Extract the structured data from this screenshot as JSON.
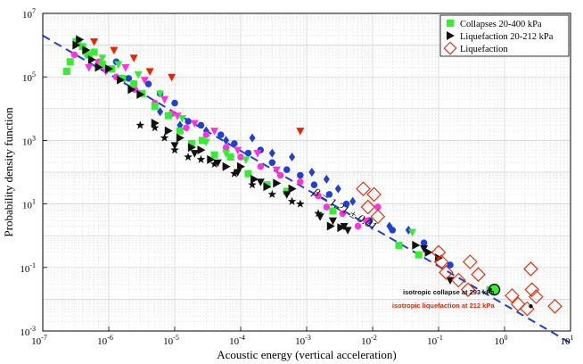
{
  "chart_data": {
    "type": "scatter",
    "title": "",
    "xlabel": "Acoustic energy (vertical acceleration)",
    "ylabel": "Probability density function",
    "x_scale": "log",
    "y_scale": "log",
    "xlim": [
      1e-07,
      10
    ],
    "ylim": [
      0.001,
      10000000
    ],
    "grid": true,
    "legend_placement": "top-right",
    "x_ticks": [
      {
        "value": 1e-07,
        "base": "10",
        "exp": "-7"
      },
      {
        "value": 1e-06,
        "base": "10",
        "exp": "-6"
      },
      {
        "value": 1e-05,
        "base": "10",
        "exp": "-5"
      },
      {
        "value": 0.0001,
        "base": "10",
        "exp": "-4"
      },
      {
        "value": 0.001,
        "base": "10",
        "exp": "-3"
      },
      {
        "value": 0.01,
        "base": "10",
        "exp": "-2"
      },
      {
        "value": 0.1,
        "base": "10",
        "exp": "-1"
      },
      {
        "value": 1,
        "base": "10",
        "exp": "0"
      },
      {
        "value": 10,
        "base": "10",
        "exp": "1"
      }
    ],
    "y_ticks": [
      {
        "value": 0.001,
        "base": "10",
        "exp": "-3"
      },
      {
        "value": 0.1,
        "base": "10",
        "exp": "-1"
      },
      {
        "value": 10,
        "base": "10",
        "exp": "1"
      },
      {
        "value": 1000,
        "base": "10",
        "exp": "3"
      },
      {
        "value": 100000,
        "base": "10",
        "exp": "5"
      },
      {
        "value": 10000000,
        "base": "10",
        "exp": "7"
      }
    ],
    "fit_line": {
      "exponent": 1.21,
      "x_start": 1e-07,
      "x_end": 10,
      "y_start": 2000000,
      "color": "#1f3fd6"
    },
    "fit_label": {
      "beta": "β",
      "text": " = 1.21 ± 0.01",
      "anchor": [
        0.0012,
        20
      ]
    },
    "legend": [
      {
        "label": "Collapses 20-400 kPa",
        "marker": "square",
        "color": "#33ee33"
      },
      {
        "label": "Liquefaction 20-212 kPa",
        "marker": "triangle-right",
        "color": "#111111"
      },
      {
        "label": "Liquefaction",
        "marker": "diamond-open",
        "color": "#ee2200"
      }
    ],
    "annotations": [
      {
        "text": "isotropic collapse at 293 kPa",
        "color": "#111111",
        "at": [
          0.7,
          0.014
        ]
      },
      {
        "text": "isotropic liquefaction at 212 kPa",
        "color": "#ee2200",
        "at": [
          0.7,
          0.0054
        ]
      }
    ],
    "series": [
      {
        "name": "Collapses 20-400 kPa",
        "marker": "square",
        "color": "#33ee33",
        "points": [
          [
            2.3e-07,
            150000
          ],
          [
            2.6e-07,
            300000
          ],
          [
            3.2e-07,
            1300000
          ],
          [
            4e-07,
            900000
          ],
          [
            5e-07,
            500000
          ],
          [
            6e-07,
            600000
          ],
          [
            8e-07,
            250000
          ],
          [
            1.1e-06,
            180000
          ],
          [
            1.6e-06,
            90000
          ],
          [
            2.4e-06,
            60000
          ],
          [
            3.2e-06,
            30000
          ],
          [
            5e-06,
            12000
          ],
          [
            8e-06,
            6000
          ],
          [
            1.2e-05,
            2000
          ],
          [
            1.8e-05,
            800
          ],
          [
            2.6e-05,
            1000
          ],
          [
            4e-05,
            350
          ],
          [
            7e-05,
            300
          ],
          [
            0.00013,
            90
          ],
          [
            0.00025,
            40
          ],
          [
            0.0005,
            25
          ],
          [
            0.0025,
            6
          ],
          [
            0.025,
            0.5
          ],
          [
            0.05,
            0.25
          ],
          [
            0.6,
            0.02
          ]
        ]
      },
      {
        "name": "Liquefaction 20-212 kPa",
        "marker": "triangle-right",
        "color": "#111111",
        "points": [
          [
            3.2e-07,
            1000000
          ],
          [
            3.6e-07,
            1500000
          ],
          [
            4.5e-07,
            700000
          ],
          [
            5.5e-07,
            350000
          ],
          [
            7e-07,
            200000
          ],
          [
            1e-06,
            180000
          ],
          [
            1.5e-06,
            80000
          ],
          [
            2.2e-06,
            40000
          ],
          [
            3e-06,
            28000
          ],
          [
            5e-06,
            3500
          ],
          [
            8e-06,
            2000
          ],
          [
            1.2e-05,
            1200
          ],
          [
            1.8e-05,
            600
          ],
          [
            2.5e-05,
            500
          ],
          [
            3.5e-05,
            250
          ],
          [
            6e-05,
            150
          ],
          [
            0.0001,
            150
          ],
          [
            0.00016,
            60
          ],
          [
            0.00025,
            35
          ],
          [
            0.00035,
            45
          ],
          [
            0.0006,
            30
          ],
          [
            0.0023,
            2
          ],
          [
            0.0033,
            1.8
          ],
          [
            0.045,
            0.5
          ],
          [
            0.07,
            0.3
          ],
          [
            0.1,
            0.2
          ]
        ]
      },
      {
        "name": "Liquefaction",
        "marker": "diamond-open",
        "color": "#ee2200",
        "points": [
          [
            0.0072,
            30
          ],
          [
            0.0085,
            8
          ],
          [
            0.0105,
            20
          ],
          [
            0.012,
            4
          ],
          [
            0.1,
            0.3
          ],
          [
            0.11,
            0.15
          ],
          [
            0.13,
            0.07
          ],
          [
            0.2,
            0.04
          ],
          [
            0.28,
            0.02
          ],
          [
            0.3,
            0.15
          ],
          [
            0.4,
            0.06
          ],
          [
            1.3,
            0.013
          ],
          [
            1.6,
            0.007
          ],
          [
            2.2,
            0.005
          ],
          [
            2.5,
            0.09
          ],
          [
            2.6,
            0.02
          ],
          [
            3,
            0.012
          ],
          [
            5.8,
            0.006
          ]
        ]
      },
      {
        "name": "",
        "marker": "circle",
        "color": "#1f3fd6",
        "points": [
          [
            1.3e-06,
            300000
          ],
          [
            2e-06,
            90000
          ],
          [
            4e-06,
            60000
          ],
          [
            6e-06,
            30000
          ],
          [
            1e-05,
            15000
          ],
          [
            1.6e-05,
            4000
          ],
          [
            2.5e-05,
            3000
          ],
          [
            5e-05,
            1500
          ],
          [
            8e-05,
            800
          ],
          [
            0.00013,
            400
          ],
          [
            0.0002,
            500
          ],
          [
            0.0003,
            200
          ],
          [
            0.0005,
            120
          ],
          [
            0.0008,
            80
          ],
          [
            0.0013,
            40
          ],
          [
            0.0022,
            20
          ],
          [
            0.004,
            10
          ],
          [
            0.009,
            3
          ],
          [
            0.02,
            1.5
          ],
          [
            0.06,
            0.6
          ],
          [
            0.15,
            0.12
          ]
        ]
      },
      {
        "name": "",
        "marker": "diamond",
        "color": "#1f3fd6",
        "points": [
          [
            6e-06,
            8000
          ],
          [
            1.2e-05,
            3000
          ],
          [
            3e-05,
            2000
          ],
          [
            6e-05,
            1000
          ],
          [
            0.00015,
            1200
          ],
          [
            0.0003,
            400
          ],
          [
            0.0006,
            300
          ],
          [
            0.0012,
            100
          ],
          [
            0.002,
            60
          ],
          [
            0.003,
            30
          ],
          [
            0.005,
            12
          ],
          [
            0.018,
            2
          ],
          [
            0.035,
            1.5
          ]
        ]
      },
      {
        "name": "",
        "marker": "circle",
        "color": "#ff33dd",
        "points": [
          [
            3e-07,
            500000
          ],
          [
            7e-07,
            300000
          ],
          [
            1.3e-06,
            100000
          ],
          [
            2.5e-06,
            40000
          ],
          [
            5e-06,
            15000
          ],
          [
            9e-06,
            7000
          ],
          [
            1.5e-05,
            2500
          ],
          [
            3e-05,
            1500
          ],
          [
            6e-05,
            600
          ],
          [
            0.0001,
            300
          ],
          [
            0.0002,
            150
          ],
          [
            0.0004,
            80
          ],
          [
            0.0008,
            50
          ],
          [
            0.0015,
            18
          ],
          [
            0.002,
            8
          ],
          [
            0.0035,
            5
          ],
          [
            0.006,
            2
          ],
          [
            0.008,
            3
          ],
          [
            0.012,
            8
          ]
        ]
      },
      {
        "name": "",
        "marker": "triangle-down",
        "color": "#ff33dd",
        "points": [
          [
            5e-07,
            200000
          ],
          [
            9e-07,
            150000
          ],
          [
            1.8e-06,
            200000
          ],
          [
            3.5e-06,
            80000
          ],
          [
            7e-06,
            20000
          ],
          [
            1.1e-05,
            6000
          ],
          [
            2e-05,
            3500
          ],
          [
            4e-05,
            2000
          ],
          [
            9e-05,
            500
          ],
          [
            0.00018,
            400
          ],
          [
            0.00035,
            120
          ]
        ]
      },
      {
        "name": "",
        "marker": "triangle-down",
        "color": "#ee2200",
        "points": [
          [
            6e-07,
            1300000
          ],
          [
            1.2e-06,
            700000
          ],
          [
            2.4e-06,
            400000
          ],
          [
            4.2e-06,
            150000
          ],
          [
            9e-06,
            100000
          ],
          [
            0.0008,
            2000
          ]
        ]
      },
      {
        "name": "",
        "marker": "triangle-down",
        "color": "#111111",
        "points": [
          [
            1e-05,
            700
          ],
          [
            2e-05,
            400
          ],
          [
            4.5e-05,
            200
          ],
          [
            9e-05,
            100
          ],
          [
            0.0002,
            50
          ],
          [
            0.0005,
            20
          ],
          [
            0.0016,
            4
          ],
          [
            0.0025,
            3
          ],
          [
            0.0037,
            2
          ],
          [
            0.0042,
            1.5
          ],
          [
            0.06,
            0.4
          ],
          [
            0.15,
            0.04
          ]
        ]
      },
      {
        "name": "",
        "marker": "triangle-down",
        "color": "#33ee33",
        "points": [
          [
            3.5e-07,
            1200000
          ],
          [
            4.5e-07,
            500000
          ],
          [
            8e-07,
            400000
          ],
          [
            1.4e-06,
            250000
          ],
          [
            2.8e-06,
            120000
          ],
          [
            6e-06,
            30000
          ],
          [
            1.3e-05,
            5000
          ],
          [
            3e-05,
            900
          ],
          [
            6e-05,
            400
          ],
          [
            0.00012,
            250
          ],
          [
            0.0025,
            3
          ],
          [
            0.04,
            1.3
          ]
        ]
      },
      {
        "name": "",
        "marker": "star",
        "color": "#111111",
        "points": [
          [
            3e-06,
            3000
          ],
          [
            5e-06,
            2500
          ],
          [
            7e-06,
            1200
          ],
          [
            1e-05,
            500
          ],
          [
            1.6e-05,
            300
          ],
          [
            2.5e-05,
            250
          ],
          [
            4e-05,
            180
          ],
          [
            8e-05,
            90
          ],
          [
            0.00015,
            40
          ],
          [
            0.0003,
            20
          ],
          [
            0.0006,
            12
          ],
          [
            0.0008,
            10
          ],
          [
            0.0015,
            5
          ]
        ]
      },
      {
        "name": "",
        "marker": "circle-ring",
        "color": "#111111",
        "points": [
          [
            0.7,
            0.02
          ]
        ]
      },
      {
        "name": "",
        "marker": "dot",
        "color": "#111111",
        "points": [
          [
            0.6,
            0.02
          ],
          [
            2.5,
            0.006
          ]
        ]
      }
    ]
  }
}
